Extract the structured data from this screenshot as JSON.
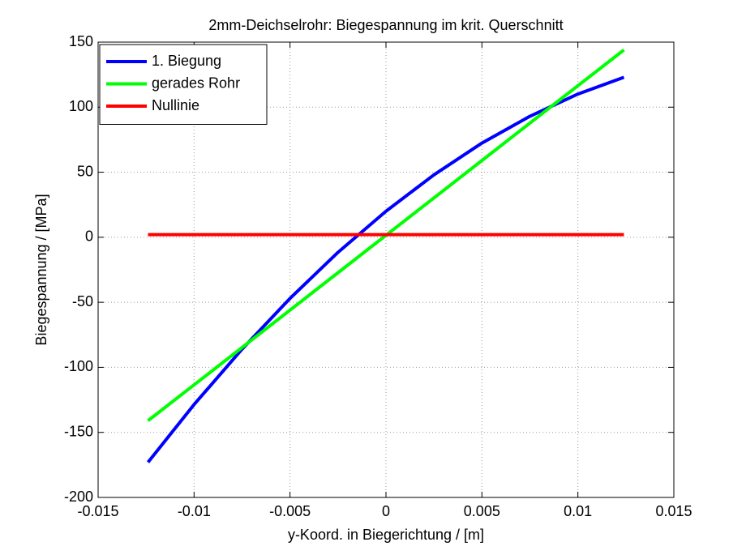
{
  "chart_data": {
    "type": "line",
    "title": "2mm-Deichselrohr: Biegespannung im krit. Querschnitt",
    "x_label": "y-Koord. in Biegerichtung / [m]",
    "y_label": "Biegespannung / [MPa]",
    "x": [
      -0.0124,
      -0.01,
      -0.0075,
      -0.005,
      -0.0025,
      0,
      0.0025,
      0.005,
      0.0075,
      0.01,
      0.0124
    ],
    "series": [
      {
        "name": "1. Biegung",
        "color": "#0000ff",
        "values": [
          -173,
          -128.6,
          -86,
          -47,
          -11.6,
          20,
          48,
          72.4,
          93,
          110.1,
          123
        ]
      },
      {
        "name": "gerades Rohr",
        "color": "#00ff00",
        "values": [
          -141,
          -113.5,
          -84.75,
          -56,
          -27.25,
          1.5,
          30.25,
          59,
          87.75,
          116.5,
          144
        ]
      },
      {
        "name": "Nullinie",
        "color": "#ff0000",
        "values": [
          2,
          2,
          2,
          2,
          2,
          2,
          2,
          2,
          2,
          2,
          2
        ]
      }
    ],
    "xlim": [
      -0.015,
      0.015
    ],
    "xticks": [
      -0.015,
      -0.01,
      -0.005,
      0,
      0.005,
      0.01,
      0.015
    ],
    "ylim": [
      -200,
      150
    ],
    "yticks": [
      -200,
      -150,
      -100,
      -50,
      0,
      50,
      100,
      150
    ],
    "grid": true,
    "legend": "top-left"
  }
}
